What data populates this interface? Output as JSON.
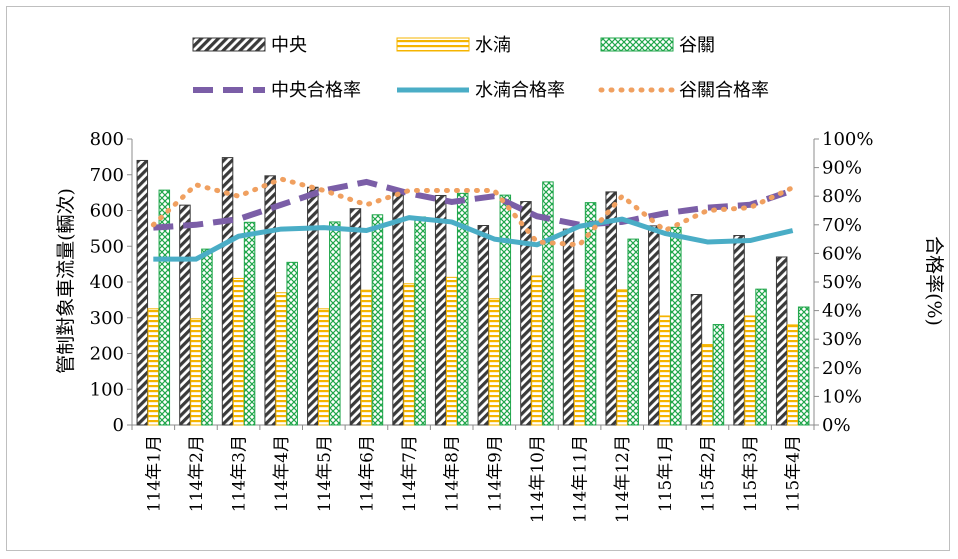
{
  "chart_data": {
    "type": "bar",
    "categories": [
      "114年1月",
      "114年2月",
      "114年3月",
      "114年4月",
      "114年5月",
      "114年6月",
      "114年7月",
      "114年8月",
      "114年9月",
      "114年10月",
      "114年11月",
      "114年12月",
      "115年1月",
      "115年2月",
      "115年3月",
      "115年4月"
    ],
    "ylabel": "管制對象車流量(輛次)",
    "y2label": "合格率(%)",
    "ylim": [
      0,
      800
    ],
    "yticks": [
      0,
      100,
      200,
      300,
      400,
      500,
      600,
      700,
      800
    ],
    "y2lim": [
      0,
      1
    ],
    "y2ticks": [
      "0%",
      "10%",
      "20%",
      "30%",
      "40%",
      "50%",
      "60%",
      "70%",
      "80%",
      "90%",
      "100%"
    ],
    "grid": false,
    "legend_position": "top",
    "bar_series": [
      {
        "name": "中央",
        "color": "#3a3a3a",
        "values": [
          740,
          615,
          748,
          697,
          665,
          605,
          650,
          642,
          558,
          625,
          548,
          652,
          557,
          365,
          530,
          470
        ]
      },
      {
        "name": "水湳",
        "color": "#f5b400",
        "values": [
          325,
          297,
          410,
          370,
          325,
          377,
          395,
          413,
          353,
          417,
          378,
          378,
          305,
          225,
          305,
          280
        ]
      },
      {
        "name": "谷關",
        "color": "#1fa64a",
        "values": [
          657,
          492,
          567,
          455,
          568,
          588,
          582,
          648,
          643,
          680,
          622,
          520,
          553,
          281,
          380,
          330
        ]
      }
    ],
    "line_series": [
      {
        "name": "中央合格率",
        "color": "#7b5ea7",
        "style": "dashed",
        "values": [
          0.69,
          0.7,
          0.72,
          0.77,
          0.82,
          0.85,
          0.81,
          0.78,
          0.8,
          0.73,
          0.7,
          0.71,
          0.74,
          0.76,
          0.77,
          0.82
        ]
      },
      {
        "name": "水湳合格率",
        "color": "#4aadc6",
        "style": "solid",
        "values": [
          0.58,
          0.58,
          0.66,
          0.685,
          0.69,
          0.68,
          0.725,
          0.71,
          0.65,
          0.63,
          0.695,
          0.72,
          0.67,
          0.64,
          0.645,
          0.68
        ]
      },
      {
        "name": "谷關合格率",
        "color": "#f0a060",
        "style": "dotted",
        "values": [
          0.7,
          0.84,
          0.8,
          0.86,
          0.82,
          0.77,
          0.82,
          0.82,
          0.82,
          0.64,
          0.63,
          0.8,
          0.68,
          0.75,
          0.76,
          0.83
        ]
      }
    ]
  }
}
